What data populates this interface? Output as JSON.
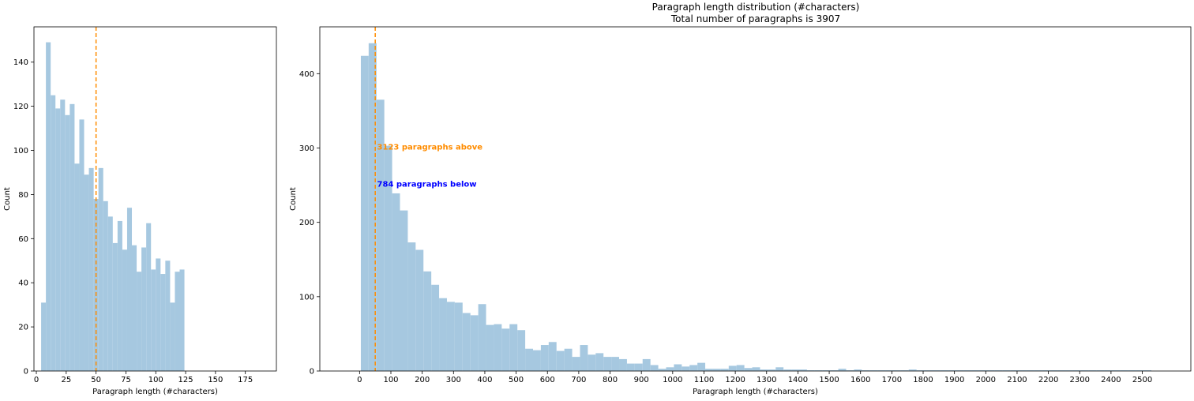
{
  "figure": {
    "title_line1": "Paragraph length distribution (#characters)",
    "title_line2": "Total number of paragraphs is 3907"
  },
  "colors": {
    "bars": "#a6c8e0",
    "cutoff_line": "#ff8c00",
    "above_text": "#ff8c00",
    "below_text": "#0000ff"
  },
  "chart_data": [
    {
      "type": "bar",
      "panel": "left",
      "title": "",
      "xlabel": "Paragraph length (#characters)",
      "ylabel": "Count",
      "bin_width": 4,
      "bin_start": 4,
      "values": [
        31,
        149,
        125,
        119,
        123,
        116,
        121,
        94,
        114,
        89,
        92,
        78,
        92,
        77,
        70,
        58,
        68,
        55,
        74,
        57,
        45,
        56,
        67,
        46,
        51,
        44,
        50,
        31,
        45,
        46
      ],
      "xlim": [
        -2,
        201
      ],
      "ylim": [
        0,
        156
      ],
      "xticks": [
        0,
        25,
        50,
        75,
        100,
        125,
        150,
        175
      ],
      "yticks": [
        0,
        20,
        40,
        60,
        80,
        100,
        120,
        140
      ],
      "cutoff": 50,
      "grid": false
    },
    {
      "type": "bar",
      "panel": "right",
      "title": "Paragraph length distribution (#characters)\nTotal number of paragraphs is 3907",
      "xlabel": "Paragraph length (#characters)",
      "ylabel": "Count",
      "bin_width": 25,
      "bin_start": 4,
      "values": [
        424,
        441,
        365,
        303,
        239,
        216,
        173,
        163,
        134,
        116,
        98,
        93,
        92,
        78,
        75,
        90,
        62,
        63,
        57,
        63,
        55,
        30,
        28,
        35,
        39,
        27,
        30,
        19,
        35,
        22,
        24,
        19,
        19,
        16,
        10,
        10,
        16,
        8,
        3,
        5,
        9,
        6,
        8,
        11,
        3,
        3,
        3,
        7,
        8,
        4,
        5,
        2,
        2,
        5,
        2,
        2,
        2,
        1,
        1,
        1,
        1,
        3,
        1,
        2,
        1,
        1,
        1,
        1,
        1,
        1,
        2,
        1,
        1,
        1,
        1,
        1,
        1,
        1,
        1,
        1,
        1,
        1,
        1,
        1,
        1,
        1,
        1,
        1,
        1,
        1,
        1,
        1,
        1,
        1,
        1,
        1,
        1,
        1,
        1,
        1,
        1
      ],
      "xlim": [
        -127,
        2655
      ],
      "ylim": [
        0,
        463
      ],
      "xticks": [
        0,
        100,
        200,
        300,
        400,
        500,
        600,
        700,
        800,
        900,
        1000,
        1100,
        1200,
        1300,
        1400,
        1500,
        1600,
        1700,
        1800,
        1900,
        2000,
        2100,
        2200,
        2300,
        2400,
        2500
      ],
      "yticks": [
        0,
        100,
        200,
        300,
        400
      ],
      "cutoff": 50,
      "grid": false,
      "annotations": [
        {
          "text": "3123 paragraphs above",
          "x": 56,
          "y": 302,
          "color": "#ff8c00"
        },
        {
          "text": "784 paragraphs below",
          "x": 56,
          "y": 252,
          "color": "#0000ff"
        }
      ]
    }
  ]
}
